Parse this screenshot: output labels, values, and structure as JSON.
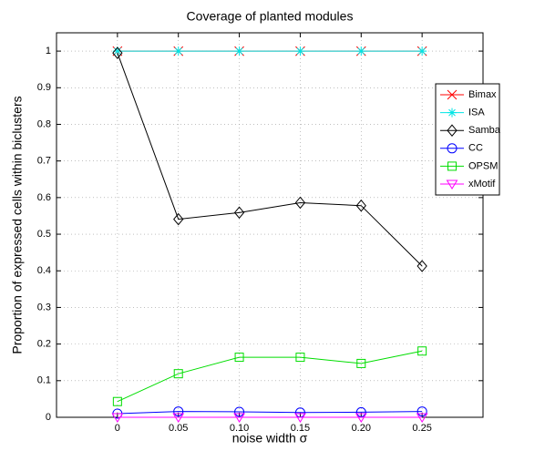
{
  "chart_data": {
    "type": "line",
    "title": "Coverage of planted modules",
    "x_label": "noise width σ",
    "y_label": "Proportion of expressed cells within biclusters",
    "x": [
      0,
      0.05,
      0.1,
      0.15,
      0.2,
      0.25
    ],
    "xlim": [
      -0.05,
      0.3
    ],
    "xticks": [
      0,
      0.05,
      {
        "value": 0.1,
        "label": "0.10"
      },
      0.15,
      {
        "value": 0.2,
        "label": "0.20"
      },
      0.25
    ],
    "ylim": [
      0,
      1.05
    ],
    "yticks": [
      0,
      0.1,
      0.2,
      0.3,
      0.4,
      0.5,
      0.6,
      0.7,
      0.8,
      0.9,
      1
    ],
    "grid": true,
    "legend": "upper right",
    "series": [
      {
        "name": "Bimax",
        "color": "#ff0000",
        "marker": "x",
        "values": [
          1,
          1,
          1,
          1,
          1,
          1
        ]
      },
      {
        "name": "ISA",
        "color": "#00e5e5",
        "marker": "star",
        "values": [
          1,
          1,
          1,
          1,
          1,
          1
        ]
      },
      {
        "name": "Samba",
        "color": "#000000",
        "marker": "diamond",
        "values": [
          0.995,
          0.541,
          0.559,
          0.586,
          0.578,
          0.413
        ]
      },
      {
        "name": "CC",
        "color": "#0000ff",
        "marker": "circle",
        "values": [
          0.01,
          0.016,
          0.015,
          0.013,
          0.014,
          0.016
        ]
      },
      {
        "name": "OPSM",
        "color": "#00dd00",
        "marker": "square",
        "values": [
          0.043,
          0.119,
          0.164,
          0.164,
          0.147,
          0.181
        ]
      },
      {
        "name": "xMotif",
        "color": "#ff00ff",
        "marker": "triangle-down",
        "values": [
          0,
          0,
          0,
          0,
          0,
          0
        ]
      }
    ]
  }
}
